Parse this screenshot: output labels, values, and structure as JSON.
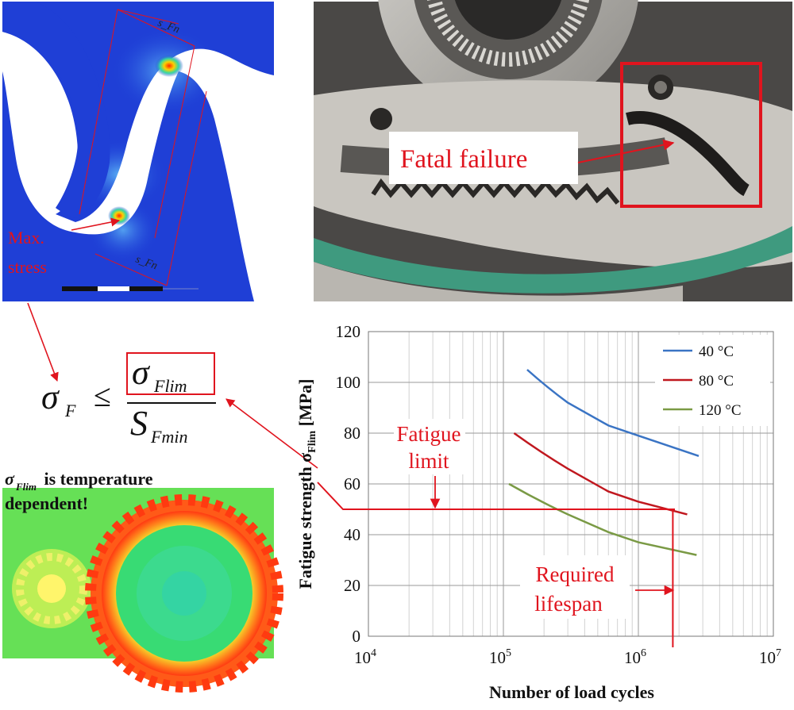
{
  "fea_panel": {
    "label_max_stress_line1": "Max.",
    "label_max_stress_line2": "stress",
    "dim_label_top": "s_Fn",
    "dim_label_bottom": "s_Fn"
  },
  "photo_panel": {
    "label_failure": "Fatal failure"
  },
  "formula": {
    "lhs_symbol": "σ",
    "lhs_sub": "F",
    "relation": "≤",
    "num_symbol": "σ",
    "num_sub": "Flim",
    "den_symbol": "S",
    "den_sub": "Fmin"
  },
  "thermal_panel": {
    "note_symbol": "σ",
    "note_sub": "Flim",
    "note_line1_rest": " is temperature",
    "note_line2": "dependent!"
  },
  "annotations": {
    "fatigue_limit_line1": "Fatigue",
    "fatigue_limit_line2": "limit",
    "required_lifespan_line1": "Required",
    "required_lifespan_line2": "lifespan"
  },
  "colors": {
    "annotation_red": "#e0141e",
    "series_40": "#3a74c4",
    "series_80": "#c0181f",
    "series_120": "#7a9a45"
  },
  "chart_data": {
    "type": "line",
    "xlabel": "Number of load cycles",
    "ylabel": "Fatigue strength σ",
    "ylabel_sub": "Flim",
    "ylabel_unit": " [MPa]",
    "x_scale": "log",
    "xlim": [
      10000,
      10000000
    ],
    "ylim": [
      0,
      120
    ],
    "x_ticks": [
      {
        "value": 10000,
        "base": "10",
        "exp": "4"
      },
      {
        "value": 100000,
        "base": "10",
        "exp": "5"
      },
      {
        "value": 1000000,
        "base": "10",
        "exp": "6"
      },
      {
        "value": 10000000,
        "base": "10",
        "exp": "7"
      }
    ],
    "y_ticks": [
      0,
      20,
      40,
      60,
      80,
      100,
      120
    ],
    "grid": true,
    "legend_position": "top-right",
    "series": [
      {
        "name": "40 °C",
        "color": "#3a74c4",
        "x": [
          150000,
          300000,
          600000,
          1000000,
          2800000
        ],
        "y": [
          105,
          92,
          83,
          79,
          71
        ]
      },
      {
        "name": "80 °C",
        "color": "#c0181f",
        "x": [
          120000,
          300000,
          600000,
          1000000,
          2300000
        ],
        "y": [
          80,
          66,
          57,
          53,
          48
        ]
      },
      {
        "name": "120 °C",
        "color": "#7a9a45",
        "x": [
          110000,
          300000,
          600000,
          1000000,
          2700000
        ],
        "y": [
          60,
          48,
          41,
          37,
          32
        ]
      }
    ],
    "fatigue_limit_value": 50,
    "required_lifespan_cycles": 1800000
  }
}
